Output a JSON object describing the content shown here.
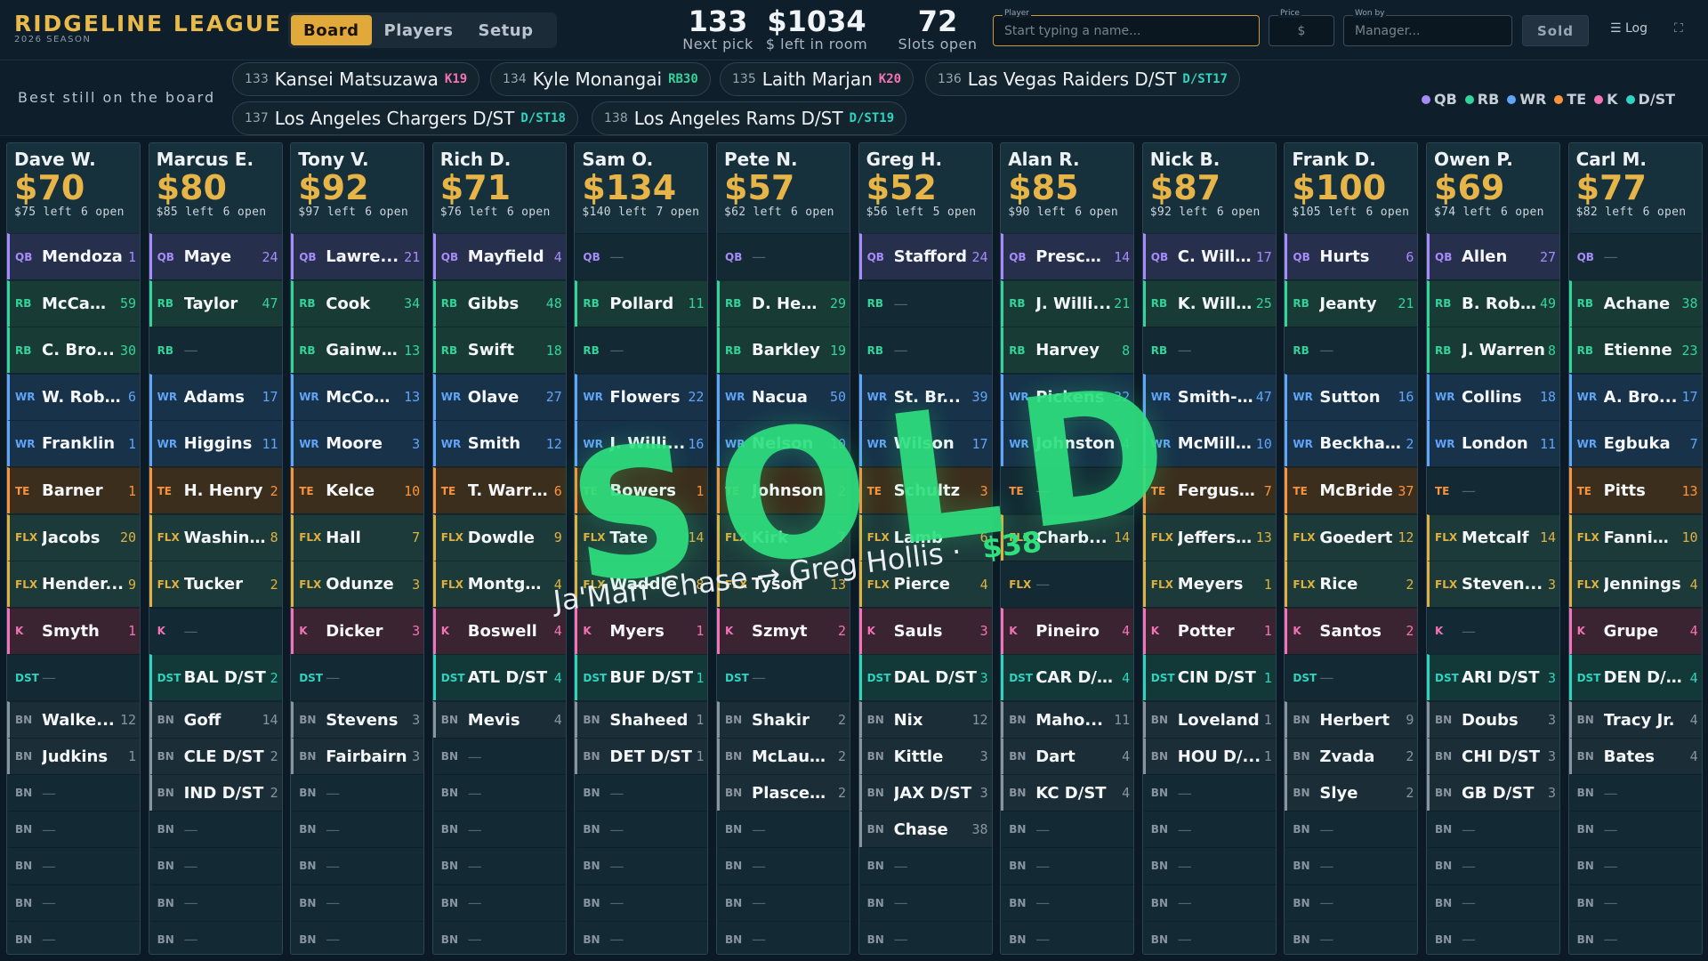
{
  "app": {
    "name": "RIDGELINE LEAGUE",
    "season": "2026 SEASON"
  },
  "nav": {
    "tabs": [
      {
        "label": "Board",
        "active": true
      },
      {
        "label": "Players",
        "active": false
      },
      {
        "label": "Setup",
        "active": false
      }
    ]
  },
  "stats": [
    {
      "value": "133",
      "label": "Next pick"
    },
    {
      "value": "$1034",
      "label": "$ left in room"
    },
    {
      "value": "72",
      "label": "Slots open"
    }
  ],
  "auction": {
    "player_label": "Player",
    "player_placeholder": "Start typing a name...",
    "price_label": "Price",
    "price_placeholder": "$",
    "wonby_label": "Won by",
    "wonby_placeholder": "Manager...",
    "sold_label": "Sold",
    "log_label": "☰ Log",
    "fullscreen_icon": "⛶"
  },
  "best": {
    "label": "Best still on the board",
    "chips": [
      {
        "num": "133",
        "name": "Kansei Matsuzawa",
        "rank": "K19",
        "pos": "K"
      },
      {
        "num": "134",
        "name": "Kyle Monangai",
        "rank": "RB30",
        "pos": "RB"
      },
      {
        "num": "135",
        "name": "Laith Marjan",
        "rank": "K20",
        "pos": "K"
      },
      {
        "num": "136",
        "name": "Las Vegas Raiders D/ST",
        "rank": "D/ST17",
        "pos": "DST"
      },
      {
        "num": "137",
        "name": "Los Angeles Chargers D/ST",
        "rank": "D/ST18",
        "pos": "DST"
      },
      {
        "num": "138",
        "name": "Los Angeles Rams D/ST",
        "rank": "D/ST19",
        "pos": "DST"
      }
    ]
  },
  "legend": [
    {
      "label": "QB",
      "color": "#a78bfa"
    },
    {
      "label": "RB",
      "color": "#34d399"
    },
    {
      "label": "WR",
      "color": "#60a5fa"
    },
    {
      "label": "TE",
      "color": "#fb923c"
    },
    {
      "label": "K",
      "color": "#f472b6"
    },
    {
      "label": "D/ST",
      "color": "#2dd4bf"
    }
  ],
  "teams": [
    {
      "manager": "Dave W.",
      "budget": "$70",
      "left": "$75 left",
      "open": "6 open",
      "slots": [
        [
          "QB",
          "Mendoza",
          "1"
        ],
        [
          "RB",
          "McCaff...",
          "59"
        ],
        [
          "RB",
          "C. Bro...",
          "30"
        ],
        [
          "WR",
          "W. Robi...",
          "6"
        ],
        [
          "WR",
          "Franklin",
          "1"
        ],
        [
          "TE",
          "Barner",
          "1"
        ],
        [
          "FLX",
          "Jacobs",
          "20"
        ],
        [
          "FLX",
          "Hender...",
          "9"
        ],
        [
          "K",
          "Smyth",
          "1"
        ],
        [
          "DST",
          "—",
          ""
        ],
        [
          "BN",
          "Walke...",
          "12"
        ],
        [
          "BN",
          "Judkins",
          "1"
        ],
        [
          "BN",
          "—",
          ""
        ],
        [
          "BN",
          "—",
          ""
        ],
        [
          "BN",
          "—",
          ""
        ],
        [
          "BN",
          "—",
          ""
        ],
        [
          "BN",
          "—",
          ""
        ]
      ]
    },
    {
      "manager": "Marcus E.",
      "budget": "$80",
      "left": "$85 left",
      "open": "6 open",
      "slots": [
        [
          "QB",
          "Maye",
          "24"
        ],
        [
          "RB",
          "Taylor",
          "47"
        ],
        [
          "RB",
          "—",
          ""
        ],
        [
          "WR",
          "Adams",
          "17"
        ],
        [
          "WR",
          "Higgins",
          "11"
        ],
        [
          "TE",
          "H. Henry",
          "2"
        ],
        [
          "FLX",
          "Washin...",
          "8"
        ],
        [
          "FLX",
          "Tucker",
          "2"
        ],
        [
          "K",
          "—",
          ""
        ],
        [
          "DST",
          "BAL D/ST",
          "2"
        ],
        [
          "BN",
          "Goff",
          "14"
        ],
        [
          "BN",
          "CLE D/ST",
          "2"
        ],
        [
          "BN",
          "IND D/ST",
          "2"
        ],
        [
          "BN",
          "—",
          ""
        ],
        [
          "BN",
          "—",
          ""
        ],
        [
          "BN",
          "—",
          ""
        ],
        [
          "BN",
          "—",
          ""
        ]
      ]
    },
    {
      "manager": "Tony V.",
      "budget": "$92",
      "left": "$97 left",
      "open": "6 open",
      "slots": [
        [
          "QB",
          "Lawre...",
          "21"
        ],
        [
          "RB",
          "Cook",
          "34"
        ],
        [
          "RB",
          "Gainwell",
          "13"
        ],
        [
          "WR",
          "McCon...",
          "13"
        ],
        [
          "WR",
          "Moore",
          "3"
        ],
        [
          "TE",
          "Kelce",
          "10"
        ],
        [
          "FLX",
          "Hall",
          "7"
        ],
        [
          "FLX",
          "Odunze",
          "3"
        ],
        [
          "K",
          "Dicker",
          "3"
        ],
        [
          "DST",
          "—",
          ""
        ],
        [
          "BN",
          "Stevens",
          "3"
        ],
        [
          "BN",
          "Fairbairn",
          "3"
        ],
        [
          "BN",
          "—",
          ""
        ],
        [
          "BN",
          "—",
          ""
        ],
        [
          "BN",
          "—",
          ""
        ],
        [
          "BN",
          "—",
          ""
        ],
        [
          "BN",
          "—",
          ""
        ]
      ]
    },
    {
      "manager": "Rich D.",
      "budget": "$71",
      "left": "$76 left",
      "open": "6 open",
      "slots": [
        [
          "QB",
          "Mayfield",
          "4"
        ],
        [
          "RB",
          "Gibbs",
          "48"
        ],
        [
          "RB",
          "Swift",
          "18"
        ],
        [
          "WR",
          "Olave",
          "27"
        ],
        [
          "WR",
          "Smith",
          "12"
        ],
        [
          "TE",
          "T. Warren",
          "6"
        ],
        [
          "FLX",
          "Dowdle",
          "9"
        ],
        [
          "FLX",
          "Montgo...",
          "4"
        ],
        [
          "K",
          "Boswell",
          "4"
        ],
        [
          "DST",
          "ATL D/ST",
          "4"
        ],
        [
          "BN",
          "Mevis",
          "4"
        ],
        [
          "BN",
          "—",
          ""
        ],
        [
          "BN",
          "—",
          ""
        ],
        [
          "BN",
          "—",
          ""
        ],
        [
          "BN",
          "—",
          ""
        ],
        [
          "BN",
          "—",
          ""
        ],
        [
          "BN",
          "—",
          ""
        ]
      ]
    },
    {
      "manager": "Sam O.",
      "budget": "$134",
      "left": "$140 left",
      "open": "7 open",
      "slots": [
        [
          "QB",
          "—",
          ""
        ],
        [
          "RB",
          "Pollard",
          "11"
        ],
        [
          "RB",
          "—",
          ""
        ],
        [
          "WR",
          "Flowers",
          "22"
        ],
        [
          "WR",
          "J. Willi...",
          "16"
        ],
        [
          "TE",
          "Bowers",
          "1"
        ],
        [
          "FLX",
          "Tate",
          "14"
        ],
        [
          "FLX",
          "Waddle",
          "8"
        ],
        [
          "K",
          "Myers",
          "1"
        ],
        [
          "DST",
          "BUF D/ST",
          "1"
        ],
        [
          "BN",
          "Shaheed",
          "1"
        ],
        [
          "BN",
          "DET D/ST",
          "1"
        ],
        [
          "BN",
          "—",
          ""
        ],
        [
          "BN",
          "—",
          ""
        ],
        [
          "BN",
          "—",
          ""
        ],
        [
          "BN",
          "—",
          ""
        ],
        [
          "BN",
          "—",
          ""
        ]
      ]
    },
    {
      "manager": "Pete N.",
      "budget": "$57",
      "left": "$62 left",
      "open": "6 open",
      "slots": [
        [
          "QB",
          "—",
          ""
        ],
        [
          "RB",
          "D. Hen...",
          "29"
        ],
        [
          "RB",
          "Barkley",
          "19"
        ],
        [
          "WR",
          "Nacua",
          "50"
        ],
        [
          "WR",
          "Nelson",
          "10"
        ],
        [
          "TE",
          "Johnson",
          "2"
        ],
        [
          "FLX",
          "Kirk",
          "7"
        ],
        [
          "FLX",
          "Tyson",
          "13"
        ],
        [
          "K",
          "Szmyt",
          "2"
        ],
        [
          "DST",
          "—",
          ""
        ],
        [
          "BN",
          "Shakir",
          "2"
        ],
        [
          "BN",
          "McLaug...",
          "2"
        ],
        [
          "BN",
          "Plascen...",
          "2"
        ],
        [
          "BN",
          "—",
          ""
        ],
        [
          "BN",
          "—",
          ""
        ],
        [
          "BN",
          "—",
          ""
        ],
        [
          "BN",
          "—",
          ""
        ]
      ]
    },
    {
      "manager": "Greg H.",
      "budget": "$52",
      "left": "$56 left",
      "open": "5 open",
      "slots": [
        [
          "QB",
          "Stafford",
          "24"
        ],
        [
          "RB",
          "—",
          ""
        ],
        [
          "RB",
          "—",
          ""
        ],
        [
          "WR",
          "St. Br...",
          "39"
        ],
        [
          "WR",
          "Wilson",
          "17"
        ],
        [
          "TE",
          "Schultz",
          "3"
        ],
        [
          "FLX",
          "Lamb",
          "6"
        ],
        [
          "FLX",
          "Pierce",
          "4"
        ],
        [
          "K",
          "Sauls",
          "3"
        ],
        [
          "DST",
          "DAL D/ST",
          "3"
        ],
        [
          "BN",
          "Nix",
          "12"
        ],
        [
          "BN",
          "Kittle",
          "3"
        ],
        [
          "BN",
          "JAX D/ST",
          "3"
        ],
        [
          "BN",
          "Chase",
          "38"
        ],
        [
          "BN",
          "—",
          ""
        ],
        [
          "BN",
          "—",
          ""
        ],
        [
          "BN",
          "—",
          ""
        ]
      ]
    },
    {
      "manager": "Alan R.",
      "budget": "$85",
      "left": "$90 left",
      "open": "6 open",
      "slots": [
        [
          "QB",
          "Prescott",
          "14"
        ],
        [
          "RB",
          "J. Willi...",
          "21"
        ],
        [
          "RB",
          "Harvey",
          "8"
        ],
        [
          "WR",
          "Pickens",
          "32"
        ],
        [
          "WR",
          "Johnston",
          "4"
        ],
        [
          "TE",
          "—",
          ""
        ],
        [
          "FLX",
          "Charb...",
          "14"
        ],
        [
          "FLX",
          "—",
          ""
        ],
        [
          "K",
          "Pineiro",
          "4"
        ],
        [
          "DST",
          "CAR D/ST",
          "4"
        ],
        [
          "BN",
          "Maho...",
          "11"
        ],
        [
          "BN",
          "Dart",
          "4"
        ],
        [
          "BN",
          "KC D/ST",
          "4"
        ],
        [
          "BN",
          "—",
          ""
        ],
        [
          "BN",
          "—",
          ""
        ],
        [
          "BN",
          "—",
          ""
        ],
        [
          "BN",
          "—",
          ""
        ]
      ]
    },
    {
      "manager": "Nick B.",
      "budget": "$87",
      "left": "$92 left",
      "open": "6 open",
      "slots": [
        [
          "QB",
          "C. Will...",
          "17"
        ],
        [
          "RB",
          "K. Will...",
          "25"
        ],
        [
          "RB",
          "—",
          ""
        ],
        [
          "WR",
          "Smith-...",
          "47"
        ],
        [
          "WR",
          "McMill...",
          "10"
        ],
        [
          "TE",
          "Ferguson",
          "7"
        ],
        [
          "FLX",
          "Jeffers...",
          "13"
        ],
        [
          "FLX",
          "Meyers",
          "1"
        ],
        [
          "K",
          "Potter",
          "1"
        ],
        [
          "DST",
          "CIN D/ST",
          "1"
        ],
        [
          "BN",
          "Loveland",
          "1"
        ],
        [
          "BN",
          "HOU D/...",
          "1"
        ],
        [
          "BN",
          "—",
          ""
        ],
        [
          "BN",
          "—",
          ""
        ],
        [
          "BN",
          "—",
          ""
        ],
        [
          "BN",
          "—",
          ""
        ],
        [
          "BN",
          "—",
          ""
        ]
      ]
    },
    {
      "manager": "Frank D.",
      "budget": "$100",
      "left": "$105 left",
      "open": "6 open",
      "slots": [
        [
          "QB",
          "Hurts",
          "6"
        ],
        [
          "RB",
          "Jeanty",
          "21"
        ],
        [
          "RB",
          "—",
          ""
        ],
        [
          "WR",
          "Sutton",
          "16"
        ],
        [
          "WR",
          "Beckha...",
          "2"
        ],
        [
          "TE",
          "McBride",
          "37"
        ],
        [
          "FLX",
          "Goedert",
          "12"
        ],
        [
          "FLX",
          "Rice",
          "2"
        ],
        [
          "K",
          "Santos",
          "2"
        ],
        [
          "DST",
          "—",
          ""
        ],
        [
          "BN",
          "Herbert",
          "9"
        ],
        [
          "BN",
          "Zvada",
          "2"
        ],
        [
          "BN",
          "Slye",
          "2"
        ],
        [
          "BN",
          "—",
          ""
        ],
        [
          "BN",
          "—",
          ""
        ],
        [
          "BN",
          "—",
          ""
        ],
        [
          "BN",
          "—",
          ""
        ]
      ]
    },
    {
      "manager": "Owen P.",
      "budget": "$69",
      "left": "$74 left",
      "open": "6 open",
      "slots": [
        [
          "QB",
          "Allen",
          "27"
        ],
        [
          "RB",
          "B. Rob...",
          "49"
        ],
        [
          "RB",
          "J. Warren",
          "8"
        ],
        [
          "WR",
          "Collins",
          "18"
        ],
        [
          "WR",
          "London",
          "11"
        ],
        [
          "TE",
          "—",
          ""
        ],
        [
          "FLX",
          "Metcalf",
          "14"
        ],
        [
          "FLX",
          "Steven...",
          "3"
        ],
        [
          "K",
          "—",
          ""
        ],
        [
          "DST",
          "ARI D/ST",
          "3"
        ],
        [
          "BN",
          "Doubs",
          "3"
        ],
        [
          "BN",
          "CHI D/ST",
          "3"
        ],
        [
          "BN",
          "GB D/ST",
          "3"
        ],
        [
          "BN",
          "—",
          ""
        ],
        [
          "BN",
          "—",
          ""
        ],
        [
          "BN",
          "—",
          ""
        ],
        [
          "BN",
          "—",
          ""
        ]
      ]
    },
    {
      "manager": "Carl M.",
      "budget": "$77",
      "left": "$82 left",
      "open": "6 open",
      "slots": [
        [
          "QB",
          "—",
          ""
        ],
        [
          "RB",
          "Achane",
          "38"
        ],
        [
          "RB",
          "Etienne",
          "23"
        ],
        [
          "WR",
          "A. Bro...",
          "17"
        ],
        [
          "WR",
          "Egbuka",
          "7"
        ],
        [
          "TE",
          "Pitts",
          "13"
        ],
        [
          "FLX",
          "Fannin...",
          "10"
        ],
        [
          "FLX",
          "Jennings",
          "4"
        ],
        [
          "K",
          "Grupe",
          "4"
        ],
        [
          "DST",
          "DEN D/ST",
          "4"
        ],
        [
          "BN",
          "Tracy Jr.",
          "4"
        ],
        [
          "BN",
          "Bates",
          "4"
        ],
        [
          "BN",
          "—",
          ""
        ],
        [
          "BN",
          "—",
          ""
        ],
        [
          "BN",
          "—",
          ""
        ],
        [
          "BN",
          "—",
          ""
        ],
        [
          "BN",
          "—",
          ""
        ]
      ]
    }
  ],
  "sold_overlay": {
    "word": "SOLD",
    "player": "Ja'Marr Chase",
    "arrow": "→",
    "manager": "Greg Hollis",
    "sep": "·",
    "price": "$38"
  }
}
